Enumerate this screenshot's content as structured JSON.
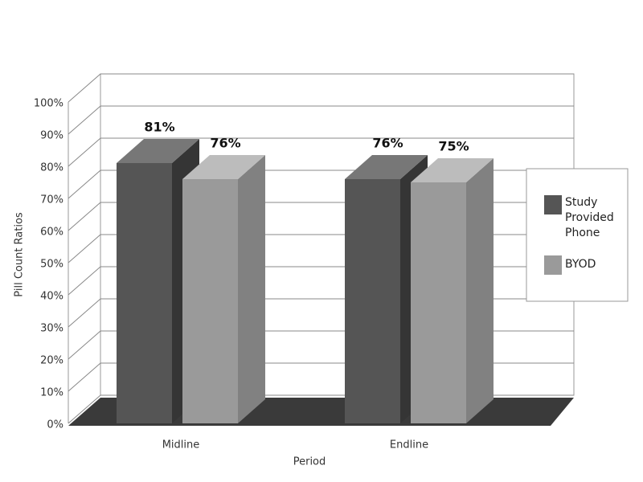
{
  "chart_data": {
    "type": "bar3d",
    "x_label": "Period",
    "y_label": "Pill Count Ratios",
    "categories": [
      "Midline",
      "Endline"
    ],
    "series": [
      {
        "name": "Study Provided Phone",
        "color": "#555555",
        "values": [
          81,
          76
        ],
        "value_labels": [
          "81%",
          "76%"
        ]
      },
      {
        "name": "BYOD",
        "color": "#9a9a9a",
        "values": [
          76,
          75
        ],
        "value_labels": [
          "76%",
          "75%"
        ]
      }
    ],
    "ylim": [
      0,
      100
    ],
    "yticks": [
      {
        "value": 0,
        "label": "0%"
      },
      {
        "value": 10,
        "label": "10%"
      },
      {
        "value": 20,
        "label": "20%"
      },
      {
        "value": 30,
        "label": "30%"
      },
      {
        "value": 40,
        "label": "40%"
      },
      {
        "value": 50,
        "label": "50%"
      },
      {
        "value": 60,
        "label": "60%"
      },
      {
        "value": 70,
        "label": "70%"
      },
      {
        "value": 80,
        "label": "80%"
      },
      {
        "value": 90,
        "label": "90%"
      },
      {
        "value": 100,
        "label": "100%"
      }
    ],
    "grid": true,
    "legend": "right"
  }
}
